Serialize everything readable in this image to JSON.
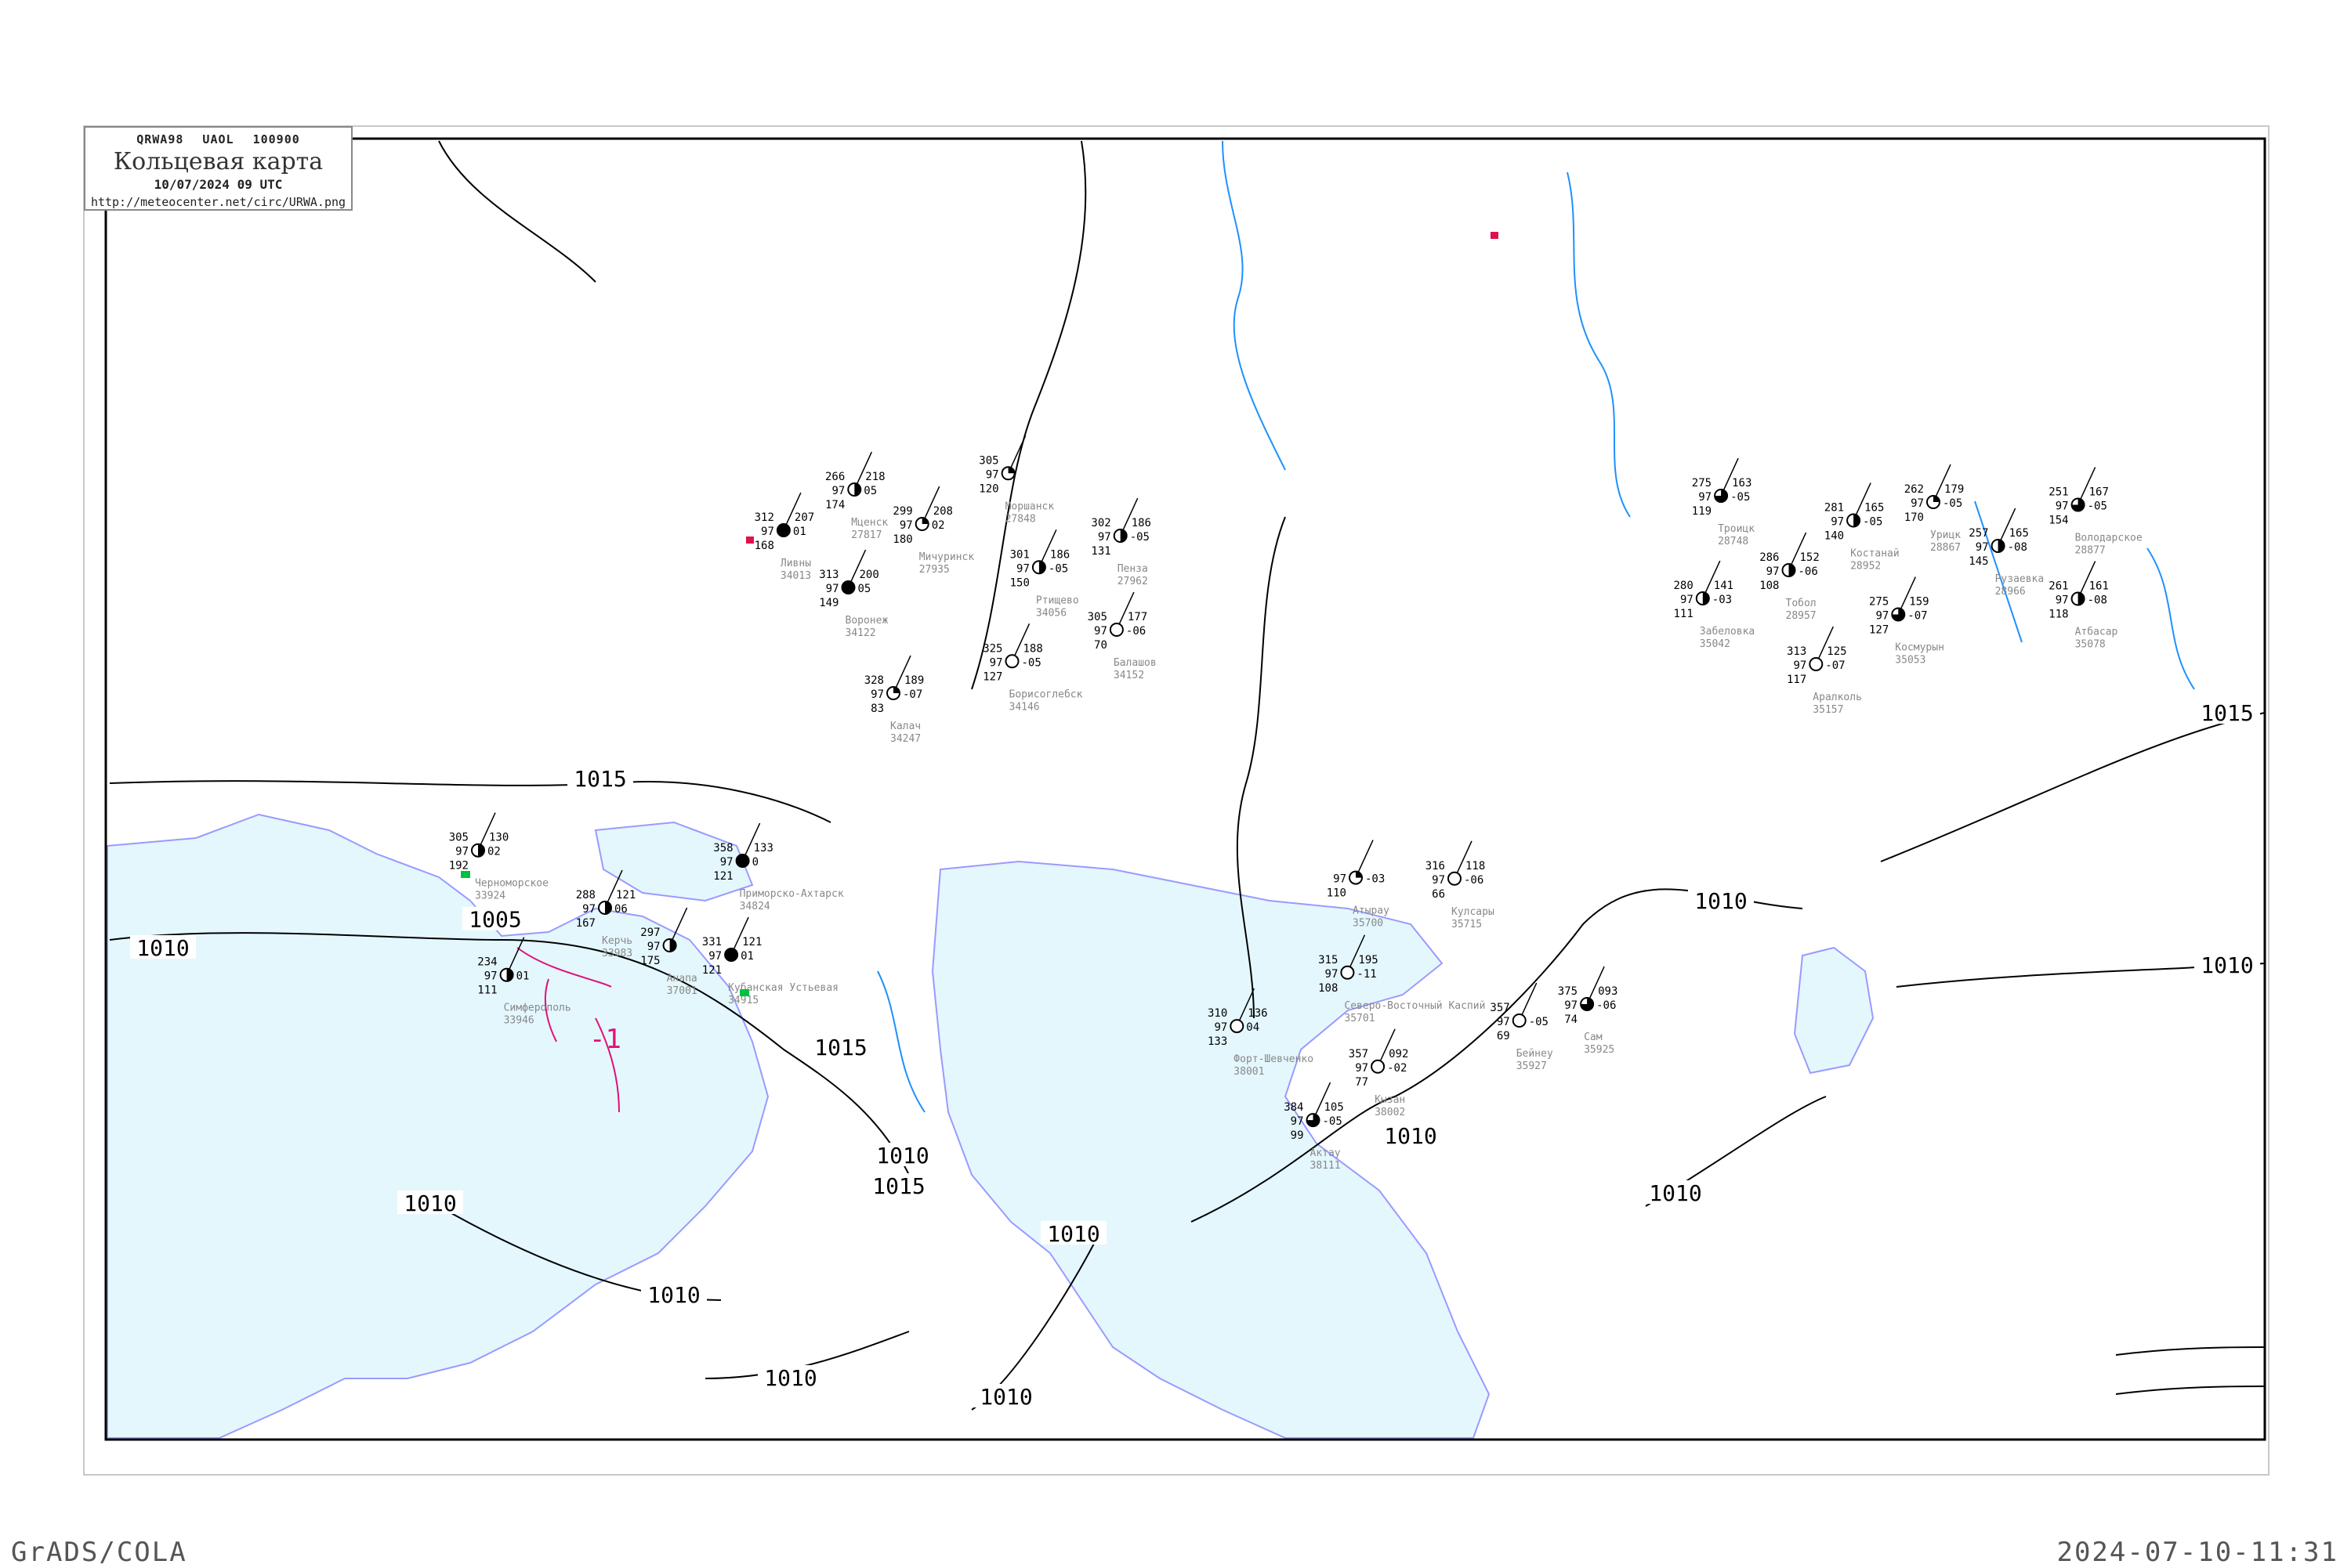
{
  "title_box": {
    "code": "QRWA98  UAOL  100900",
    "name": "Кольцевая карта",
    "date": "10/07/2024 09 UTC",
    "url": "http://meteocenter.net/circ/URWA.png"
  },
  "footer": {
    "left": "GrADS/COLA",
    "right": "2024-07-10-11:31"
  },
  "colors": {
    "sea": "#e4f7fd",
    "coast": "#9a9aff",
    "isobar": "#000000",
    "river": "#1e90ff",
    "station_name": "#888888",
    "isotherm": "#e0107a",
    "marker_green": "#00c040",
    "marker_red": "#e0104a"
  },
  "isobar_labels": [
    "1015",
    "1015",
    "1015",
    "1015",
    "1010",
    "1010",
    "1010",
    "1010",
    "1010",
    "1010",
    "1010",
    "1010",
    "1010",
    "1005",
    "1010",
    "1010"
  ],
  "isotherm_label": "-1",
  "stations": [
    {
      "name": "Мценск",
      "id": "27817",
      "p": "266",
      "t": "97",
      "bl": "174",
      "tr": "218",
      "mr": "05",
      "cloud": 0.5
    },
    {
      "name": "Ливны",
      "id": "34013",
      "p": "312",
      "t": "97",
      "bl": "168",
      "tr": "207",
      "mr": "01",
      "cloud": 1
    },
    {
      "name": "Мичуринск",
      "id": "27935",
      "p": "299",
      "t": "97",
      "bl": "180",
      "tr": "208",
      "mr": "02",
      "cloud": 0.25
    },
    {
      "name": "Моршанск",
      "id": "27848",
      "p": "305",
      "t": "97",
      "bl": "120",
      "tr": "",
      "mr": "",
      "cloud": 0.25
    },
    {
      "name": "Пенза",
      "id": "27962",
      "p": "302",
      "t": "97",
      "bl": "131",
      "tr": "186",
      "mr": "-05",
      "cloud": 0.5
    },
    {
      "name": "Воронеж",
      "id": "34122",
      "p": "313",
      "t": "97",
      "bl": "149",
      "tr": "200",
      "mr": "05",
      "cloud": 1
    },
    {
      "name": "Ртищево",
      "id": "34056",
      "p": "301",
      "t": "97",
      "bl": "150",
      "tr": "186",
      "mr": "-05",
      "cloud": 0.5
    },
    {
      "name": "Балашов",
      "id": "34152",
      "p": "305",
      "t": "97",
      "bl": "70",
      "tr": "177",
      "mr": "-06",
      "cloud": 0
    },
    {
      "name": "Борисоглебск",
      "id": "34146",
      "p": "325",
      "t": "97",
      "bl": "127",
      "tr": "188",
      "mr": "-05",
      "cloud": 0
    },
    {
      "name": "Калач",
      "id": "34247",
      "p": "328",
      "t": "97",
      "bl": "83",
      "tr": "189",
      "mr": "-07",
      "cloud": 0.25
    },
    {
      "name": "Атырау",
      "id": "35700",
      "p": "",
      "t": "97",
      "bl": "110",
      "tr": "",
      "mr": "-03",
      "cloud": 0.25
    },
    {
      "name": "Северо-Восточный Каспий",
      "id": "35701",
      "p": "315",
      "t": "97",
      "bl": "108",
      "tr": "195",
      "mr": "-11",
      "cloud": 0
    },
    {
      "name": "Кулсары",
      "id": "35715",
      "p": "316",
      "t": "97",
      "bl": "66",
      "tr": "118",
      "mr": "-06",
      "cloud": 0
    },
    {
      "name": "Бейнеу",
      "id": "35927",
      "p": "357",
      "t": "97",
      "bl": "69",
      "tr": "",
      "mr": "-05",
      "cloud": 0
    },
    {
      "name": "Сам",
      "id": "35925",
      "p": "375",
      "t": "97",
      "bl": "74",
      "tr": "093",
      "mr": "-06",
      "cloud": 0.75
    },
    {
      "name": "Кызан",
      "id": "38002",
      "p": "357",
      "t": "97",
      "bl": "77",
      "tr": "092",
      "mr": "-02",
      "cloud": 0
    },
    {
      "name": "Форт-Шевченко",
      "id": "38001",
      "p": "310",
      "t": "97",
      "bl": "133",
      "tr": "136",
      "mr": "04",
      "cloud": 0
    },
    {
      "name": "Актау",
      "id": "38111",
      "p": "384",
      "t": "97",
      "bl": "99",
      "tr": "105",
      "mr": "-05",
      "cloud": 0.75
    },
    {
      "name": "Черноморское",
      "id": "33924",
      "p": "305",
      "t": "97",
      "bl": "192",
      "tr": "130",
      "mr": "02",
      "cloud": 0.5
    },
    {
      "name": "Симферополь",
      "id": "33946",
      "p": "234",
      "t": "97",
      "bl": "111",
      "tr": "",
      "mr": "01",
      "cloud": 0.5
    },
    {
      "name": "Керчь",
      "id": "33983",
      "p": "288",
      "t": "97",
      "bl": "167",
      "tr": "121",
      "mr": "06",
      "cloud": 0.5
    },
    {
      "name": "Анапа",
      "id": "37001",
      "p": "297",
      "t": "97",
      "bl": "175",
      "tr": "",
      "mr": "",
      "cloud": 0.5
    },
    {
      "name": "Приморско-Ахтарск",
      "id": "34824",
      "p": "358",
      "t": "97",
      "bl": "121",
      "tr": "133",
      "mr": "0",
      "cloud": 1
    },
    {
      "name": "Кубанская Устьевая",
      "id": "34915",
      "p": "331",
      "t": "97",
      "bl": "121",
      "tr": "121",
      "mr": "01",
      "cloud": 1
    },
    {
      "name": "Троицк",
      "id": "28748",
      "p": "275",
      "t": "97",
      "bl": "119",
      "tr": "163",
      "mr": "-05",
      "cloud": 0.75
    },
    {
      "name": "Костанай",
      "id": "28952",
      "p": "281",
      "t": "97",
      "bl": "140",
      "tr": "165",
      "mr": "-05",
      "cloud": 0.5
    },
    {
      "name": "Урицк",
      "id": "28867",
      "p": "262",
      "t": "97",
      "bl": "170",
      "tr": "179",
      "mr": "-05",
      "cloud": 0.25
    },
    {
      "name": "Рузаевка",
      "id": "28966",
      "p": "257",
      "t": "97",
      "bl": "145",
      "tr": "165",
      "mr": "-08",
      "cloud": 0.5
    },
    {
      "name": "Володарское",
      "id": "28877",
      "p": "251",
      "t": "97",
      "bl": "154",
      "tr": "167",
      "mr": "-05",
      "cloud": 0.75
    },
    {
      "name": "Тобол",
      "id": "28957",
      "p": "286",
      "t": "97",
      "bl": "108",
      "tr": "152",
      "mr": "-06",
      "cloud": 0.5
    },
    {
      "name": "Космурын",
      "id": "35053",
      "p": "275",
      "t": "97",
      "bl": "127",
      "tr": "159",
      "mr": "-07",
      "cloud": 0.75
    },
    {
      "name": "Забеловка",
      "id": "35042",
      "p": "280",
      "t": "97",
      "bl": "111",
      "tr": "141",
      "mr": "-03",
      "cloud": 0.5
    },
    {
      "name": "Атбасар",
      "id": "35078",
      "p": "261",
      "t": "97",
      "bl": "118",
      "tr": "161",
      "mr": "-08",
      "cloud": 0.5
    },
    {
      "name": "Аралколь",
      "id": "35157",
      "p": "313",
      "t": "97",
      "bl": "117",
      "tr": "125",
      "mr": "-07",
      "cloud": 0
    }
  ]
}
